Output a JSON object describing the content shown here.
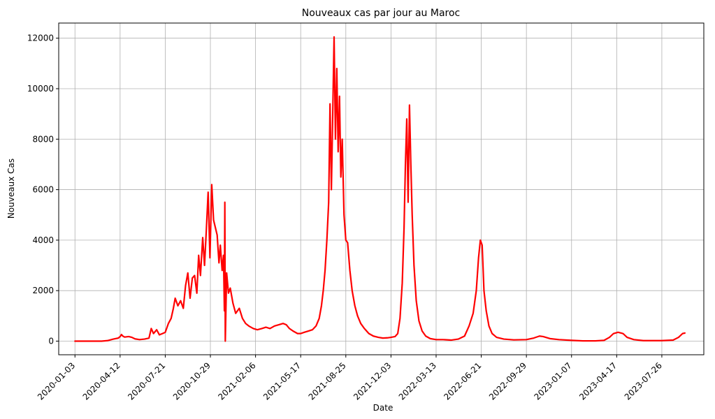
{
  "chart_data": {
    "type": "line",
    "title": "Nouveaux cas par jour au Maroc",
    "xlabel": "Date",
    "ylabel": "Nouveaux Cas",
    "x_tick_labels": [
      "2020-01-03",
      "2020-04-12",
      "2020-07-21",
      "2020-10-29",
      "2021-02-06",
      "2021-05-17",
      "2021-08-25",
      "2021-12-03",
      "2022-03-13",
      "2022-06-21",
      "2022-09-29",
      "2023-01-07",
      "2023-04-17",
      "2023-07-26"
    ],
    "y_ticks": [
      0,
      2000,
      4000,
      6000,
      8000,
      10000,
      12000
    ],
    "ylim": [
      -540,
      12600
    ],
    "xlim": [
      "2019-11-28",
      "2023-10-27"
    ],
    "grid": true,
    "color": "#ff0000",
    "series": [
      {
        "points": [
          [
            "2020-01-03",
            0
          ],
          [
            "2020-02-15",
            0
          ],
          [
            "2020-03-02",
            0
          ],
          [
            "2020-03-15",
            20
          ],
          [
            "2020-03-28",
            80
          ],
          [
            "2020-04-08",
            120
          ],
          [
            "2020-04-12",
            180
          ],
          [
            "2020-04-15",
            260
          ],
          [
            "2020-04-18",
            200
          ],
          [
            "2020-04-22",
            160
          ],
          [
            "2020-05-01",
            180
          ],
          [
            "2020-05-08",
            150
          ],
          [
            "2020-05-15",
            90
          ],
          [
            "2020-05-25",
            60
          ],
          [
            "2020-06-05",
            80
          ],
          [
            "2020-06-15",
            120
          ],
          [
            "2020-06-20",
            500
          ],
          [
            "2020-06-25",
            300
          ],
          [
            "2020-07-02",
            450
          ],
          [
            "2020-07-08",
            250
          ],
          [
            "2020-07-15",
            300
          ],
          [
            "2020-07-21",
            350
          ],
          [
            "2020-07-28",
            700
          ],
          [
            "2020-08-03",
            900
          ],
          [
            "2020-08-08",
            1300
          ],
          [
            "2020-08-12",
            1700
          ],
          [
            "2020-08-18",
            1400
          ],
          [
            "2020-08-24",
            1600
          ],
          [
            "2020-08-30",
            1300
          ],
          [
            "2020-09-04",
            2200
          ],
          [
            "2020-09-09",
            2700
          ],
          [
            "2020-09-14",
            1700
          ],
          [
            "2020-09-19",
            2500
          ],
          [
            "2020-09-24",
            2600
          ],
          [
            "2020-09-29",
            1900
          ],
          [
            "2020-10-03",
            3400
          ],
          [
            "2020-10-07",
            2600
          ],
          [
            "2020-10-12",
            4100
          ],
          [
            "2020-10-16",
            3000
          ],
          [
            "2020-10-20",
            4400
          ],
          [
            "2020-10-24",
            5900
          ],
          [
            "2020-10-28",
            3300
          ],
          [
            "2020-11-01",
            6200
          ],
          [
            "2020-11-05",
            4800
          ],
          [
            "2020-11-09",
            4500
          ],
          [
            "2020-11-13",
            4200
          ],
          [
            "2020-11-17",
            3100
          ],
          [
            "2020-11-20",
            3800
          ],
          [
            "2020-11-24",
            2800
          ],
          [
            "2020-11-27",
            3400
          ],
          [
            "2020-11-29",
            1200
          ],
          [
            "2020-11-30",
            5500
          ],
          [
            "2020-12-01",
            0
          ],
          [
            "2020-12-04",
            2700
          ],
          [
            "2020-12-08",
            1900
          ],
          [
            "2020-12-12",
            2100
          ],
          [
            "2020-12-18",
            1500
          ],
          [
            "2020-12-24",
            1100
          ],
          [
            "2021-01-01",
            1300
          ],
          [
            "2021-01-08",
            900
          ],
          [
            "2021-01-15",
            700
          ],
          [
            "2021-01-22",
            600
          ],
          [
            "2021-02-01",
            500
          ],
          [
            "2021-02-10",
            450
          ],
          [
            "2021-02-20",
            500
          ],
          [
            "2021-03-01",
            550
          ],
          [
            "2021-03-10",
            500
          ],
          [
            "2021-03-20",
            600
          ],
          [
            "2021-03-30",
            650
          ],
          [
            "2021-04-08",
            700
          ],
          [
            "2021-04-15",
            650
          ],
          [
            "2021-04-22",
            500
          ],
          [
            "2021-04-30",
            400
          ],
          [
            "2021-05-10",
            300
          ],
          [
            "2021-05-17",
            300
          ],
          [
            "2021-05-25",
            350
          ],
          [
            "2021-06-03",
            400
          ],
          [
            "2021-06-12",
            450
          ],
          [
            "2021-06-20",
            600
          ],
          [
            "2021-06-27",
            900
          ],
          [
            "2021-07-02",
            1400
          ],
          [
            "2021-07-06",
            2000
          ],
          [
            "2021-07-10",
            2800
          ],
          [
            "2021-07-14",
            4000
          ],
          [
            "2021-07-18",
            5500
          ],
          [
            "2021-07-21",
            9400
          ],
          [
            "2021-07-24",
            6000
          ],
          [
            "2021-07-27",
            9000
          ],
          [
            "2021-07-30",
            12050
          ],
          [
            "2021-08-02",
            8000
          ],
          [
            "2021-08-05",
            10800
          ],
          [
            "2021-08-08",
            7500
          ],
          [
            "2021-08-11",
            9700
          ],
          [
            "2021-08-14",
            6500
          ],
          [
            "2021-08-17",
            8000
          ],
          [
            "2021-08-21",
            5000
          ],
          [
            "2021-08-25",
            4000
          ],
          [
            "2021-08-29",
            3900
          ],
          [
            "2021-09-03",
            2800
          ],
          [
            "2021-09-08",
            2000
          ],
          [
            "2021-09-14",
            1400
          ],
          [
            "2021-09-20",
            1000
          ],
          [
            "2021-09-27",
            700
          ],
          [
            "2021-10-05",
            500
          ],
          [
            "2021-10-15",
            300
          ],
          [
            "2021-10-25",
            200
          ],
          [
            "2021-11-05",
            150
          ],
          [
            "2021-11-15",
            120
          ],
          [
            "2021-11-25",
            130
          ],
          [
            "2021-12-03",
            150
          ],
          [
            "2021-12-12",
            180
          ],
          [
            "2021-12-18",
            300
          ],
          [
            "2021-12-23",
            900
          ],
          [
            "2021-12-28",
            2300
          ],
          [
            "2022-01-01",
            4500
          ],
          [
            "2022-01-04",
            7000
          ],
          [
            "2022-01-07",
            8800
          ],
          [
            "2022-01-10",
            5500
          ],
          [
            "2022-01-13",
            9350
          ],
          [
            "2022-01-16",
            7000
          ],
          [
            "2022-01-19",
            5000
          ],
          [
            "2022-01-23",
            3000
          ],
          [
            "2022-01-28",
            1600
          ],
          [
            "2022-02-03",
            800
          ],
          [
            "2022-02-10",
            400
          ],
          [
            "2022-02-18",
            200
          ],
          [
            "2022-02-28",
            100
          ],
          [
            "2022-03-13",
            60
          ],
          [
            "2022-03-28",
            60
          ],
          [
            "2022-04-15",
            40
          ],
          [
            "2022-05-01",
            80
          ],
          [
            "2022-05-15",
            200
          ],
          [
            "2022-05-25",
            600
          ],
          [
            "2022-06-03",
            1100
          ],
          [
            "2022-06-10",
            2000
          ],
          [
            "2022-06-15",
            3300
          ],
          [
            "2022-06-19",
            4000
          ],
          [
            "2022-06-23",
            3800
          ],
          [
            "2022-06-27",
            2000
          ],
          [
            "2022-07-02",
            1200
          ],
          [
            "2022-07-08",
            600
          ],
          [
            "2022-07-15",
            300
          ],
          [
            "2022-07-25",
            150
          ],
          [
            "2022-08-10",
            80
          ],
          [
            "2022-09-01",
            50
          ],
          [
            "2022-09-29",
            60
          ],
          [
            "2022-10-15",
            120
          ],
          [
            "2022-10-28",
            200
          ],
          [
            "2022-11-05",
            180
          ],
          [
            "2022-11-20",
            100
          ],
          [
            "2022-12-10",
            60
          ],
          [
            "2023-01-07",
            30
          ],
          [
            "2023-02-01",
            10
          ],
          [
            "2023-03-01",
            10
          ],
          [
            "2023-03-20",
            30
          ],
          [
            "2023-04-01",
            150
          ],
          [
            "2023-04-10",
            300
          ],
          [
            "2023-04-20",
            350
          ],
          [
            "2023-05-01",
            300
          ],
          [
            "2023-05-10",
            150
          ],
          [
            "2023-05-25",
            60
          ],
          [
            "2023-06-15",
            20
          ],
          [
            "2023-07-26",
            20
          ],
          [
            "2023-08-20",
            40
          ],
          [
            "2023-09-01",
            150
          ],
          [
            "2023-09-10",
            300
          ],
          [
            "2023-09-15",
            320
          ]
        ]
      }
    ]
  }
}
